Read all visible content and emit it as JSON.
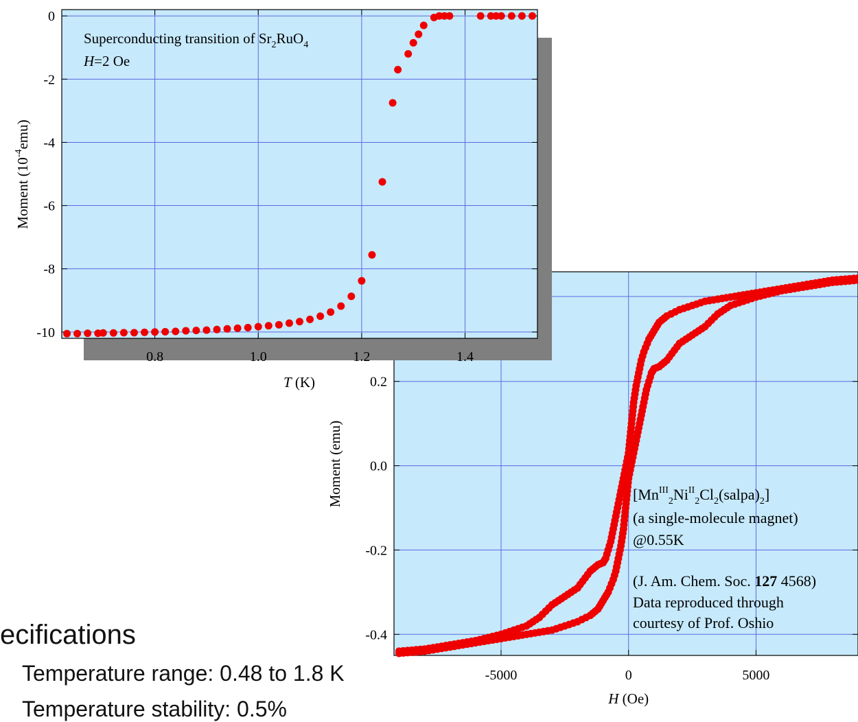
{
  "specs": {
    "heading": "ecifications",
    "items": [
      "Temperature range: 0.48 to 1.8 K",
      "Temperature stability: 0.5%"
    ]
  },
  "colors": {
    "plot_bg": "#c6e9fb",
    "grid": "#5b6ae0",
    "marker": "#ee0000",
    "shadow": "#7f7f7f"
  },
  "chart_data": [
    {
      "type": "scatter",
      "annotation_lines": [
        "Superconducting transition of Sr2RuO4",
        "H=2 Oe"
      ],
      "xlabel": "T (K)",
      "ylabel": "Moment (10-4emu)",
      "xlim": [
        0.62,
        1.54
      ],
      "ylim": [
        -10.2,
        0.2
      ],
      "xticks": [
        0.8,
        1.0,
        1.2,
        1.4
      ],
      "xtick_labels": [
        "0.8",
        "1.0",
        "1.2",
        "1.4"
      ],
      "yticks": [
        0,
        -2,
        -4,
        -6,
        -8,
        -10
      ],
      "ytick_labels": [
        "0",
        "-2",
        "-4",
        "-6",
        "-8",
        "-10"
      ],
      "grid": true,
      "x": [
        0.63,
        0.65,
        0.67,
        0.69,
        0.7,
        0.72,
        0.74,
        0.76,
        0.78,
        0.8,
        0.82,
        0.84,
        0.86,
        0.88,
        0.9,
        0.92,
        0.94,
        0.96,
        0.98,
        1.0,
        1.02,
        1.04,
        1.06,
        1.08,
        1.1,
        1.12,
        1.14,
        1.16,
        1.18,
        1.2,
        1.22,
        1.24,
        1.26,
        1.27,
        1.29,
        1.3,
        1.31,
        1.32,
        1.34,
        1.35,
        1.36,
        1.37,
        1.43,
        1.45,
        1.46,
        1.47,
        1.49,
        1.51,
        1.53
      ],
      "y": [
        -10.05,
        -10.05,
        -10.04,
        -10.04,
        -10.03,
        -10.03,
        -10.02,
        -10.02,
        -10.01,
        -10.0,
        -9.99,
        -9.98,
        -9.96,
        -9.95,
        -9.94,
        -9.92,
        -9.9,
        -9.88,
        -9.86,
        -9.83,
        -9.8,
        -9.77,
        -9.72,
        -9.67,
        -9.6,
        -9.5,
        -9.37,
        -9.18,
        -8.87,
        -8.38,
        -7.56,
        -5.25,
        -2.75,
        -1.7,
        -1.2,
        -0.85,
        -0.58,
        -0.3,
        -0.05,
        0.0,
        0.0,
        0.0,
        0.0,
        0.0,
        0.0,
        0.0,
        0.0,
        0.0,
        0.0
      ]
    },
    {
      "type": "scatter",
      "annotation_lines": [
        "[MnIII2NiII2Cl2(salpa)2]",
        "(a single-molecule magnet)",
        "@0.55K",
        "",
        "(J. Am. Chem. Soc. 127 4568)",
        "Data reproduced through",
        "courtesy of Prof. Oshio"
      ],
      "xlabel": "H (Oe)",
      "ylabel": "Moment (emu)",
      "xlim": [
        -9200,
        9000
      ],
      "ylim": [
        -0.45,
        0.46
      ],
      "xticks": [
        -5000,
        0,
        5000
      ],
      "xtick_labels": [
        "-5000",
        "0",
        "5000"
      ],
      "yticks": [
        0.2,
        0.0,
        -0.2,
        -0.4
      ],
      "ytick_labels": [
        "0.2",
        "0.0",
        "-0.2",
        "-0.4"
      ],
      "grid": true,
      "series": [
        {
          "x": [
            9000,
            8000,
            7000,
            6000,
            5000,
            4000,
            3000,
            2500,
            2000,
            1500,
            1200,
            1000,
            800,
            600,
            500,
            400,
            300,
            250,
            200,
            150,
            100,
            50,
            0,
            -100,
            -200,
            -300,
            -400,
            -500,
            -600,
            -700,
            -800,
            -900,
            -1000,
            -1200,
            -1500,
            -2000,
            -2500,
            -3000,
            -3500,
            -4000,
            -5000,
            -6000,
            -7000,
            -8000,
            -9000
          ],
          "y": [
            0.445,
            0.44,
            0.43,
            0.42,
            0.41,
            0.4,
            0.39,
            0.38,
            0.37,
            0.355,
            0.34,
            0.32,
            0.3,
            0.27,
            0.25,
            0.22,
            0.19,
            0.17,
            0.15,
            0.12,
            0.09,
            0.06,
            0.03,
            0.0,
            -0.03,
            -0.06,
            -0.09,
            -0.12,
            -0.15,
            -0.18,
            -0.2,
            -0.22,
            -0.23,
            -0.235,
            -0.25,
            -0.29,
            -0.31,
            -0.33,
            -0.36,
            -0.38,
            -0.4,
            -0.415,
            -0.425,
            -0.435,
            -0.44
          ]
        },
        {
          "x": [
            -9000,
            -8000,
            -7000,
            -6000,
            -5000,
            -4000,
            -3000,
            -2500,
            -2000,
            -1500,
            -1200,
            -1000,
            -800,
            -600,
            -500,
            -400,
            -300,
            -250,
            -200,
            -150,
            -100,
            -50,
            0,
            100,
            200,
            300,
            400,
            500,
            600,
            700,
            800,
            900,
            1000,
            1200,
            1500,
            2000,
            2500,
            3000,
            3500,
            4000,
            5000,
            6000,
            7000,
            8000,
            9000
          ],
          "y": [
            -0.445,
            -0.44,
            -0.43,
            -0.42,
            -0.41,
            -0.4,
            -0.39,
            -0.38,
            -0.37,
            -0.355,
            -0.34,
            -0.32,
            -0.3,
            -0.27,
            -0.25,
            -0.22,
            -0.19,
            -0.17,
            -0.15,
            -0.12,
            -0.09,
            -0.06,
            -0.03,
            0.0,
            0.03,
            0.06,
            0.09,
            0.12,
            0.15,
            0.18,
            0.2,
            0.22,
            0.23,
            0.235,
            0.25,
            0.29,
            0.31,
            0.33,
            0.36,
            0.38,
            0.4,
            0.415,
            0.425,
            0.435,
            0.44
          ]
        }
      ]
    }
  ]
}
